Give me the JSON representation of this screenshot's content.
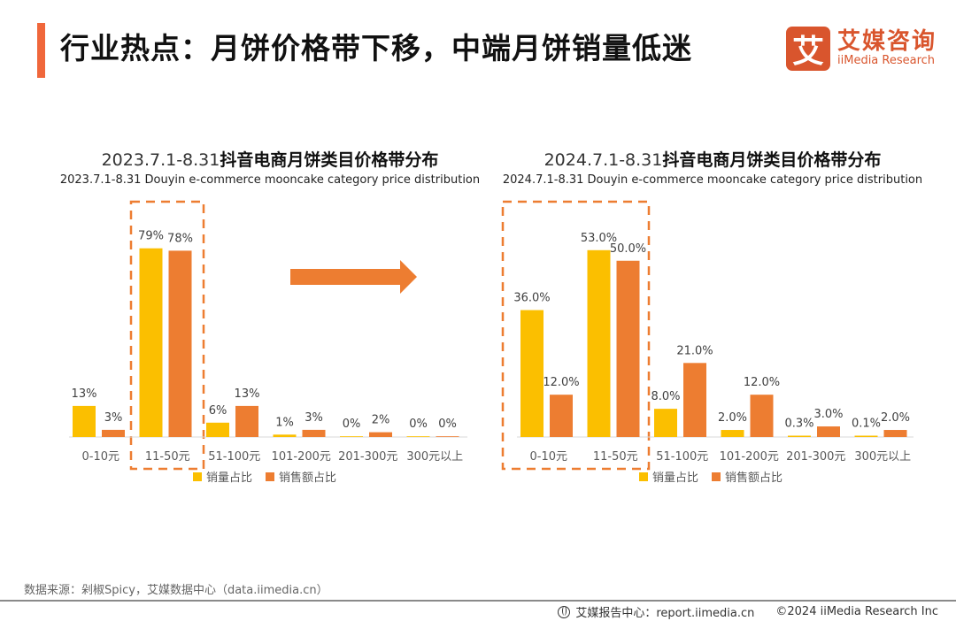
{
  "header": {
    "title": "行业热点：月饼价格带下移，中端月饼销量低迷",
    "accent_color": "#f0673b"
  },
  "logo": {
    "mark": "艾",
    "name_cn": "艾媒咨询",
    "name_en": "iiMedia Research",
    "color": "#d9552d"
  },
  "chart_data": [
    {
      "type": "bar",
      "title_date": "2023.7.1-8.31",
      "title_cn": "抖音电商月饼类目价格带分布",
      "subtitle": "2023.7.1-8.31 Douyin e-commerce mooncake category price distribution",
      "categories": [
        "0-10元",
        "11-50元",
        "51-100元",
        "101-200元",
        "201-300元",
        "300元以上"
      ],
      "series": [
        {
          "name": "销量占比",
          "color": "#fbbf00",
          "values": [
            13,
            79,
            6,
            1,
            0,
            0
          ],
          "labels": [
            "13%",
            "79%",
            "6%",
            "1%",
            "0%",
            "0%"
          ]
        },
        {
          "name": "销售额占比",
          "color": "#ed7d31",
          "values": [
            3,
            78,
            13,
            3,
            2,
            0
          ],
          "labels": [
            "3%",
            "78%",
            "13%",
            "3%",
            "2%",
            "0%"
          ]
        }
      ],
      "highlight_categories": [
        "11-50元"
      ],
      "ylim": [
        0,
        100
      ],
      "grid": false,
      "legend": "bottom"
    },
    {
      "type": "bar",
      "title_date": "2024.7.1-8.31",
      "title_cn": "抖音电商月饼类目价格带分布",
      "subtitle": "2024.7.1-8.31 Douyin e-commerce mooncake category price distribution",
      "categories": [
        "0-10元",
        "11-50元",
        "51-100元",
        "101-200元",
        "201-300元",
        "300元以上"
      ],
      "series": [
        {
          "name": "销量占比",
          "color": "#fbbf00",
          "values": [
            36.0,
            53.0,
            8.0,
            2.0,
            0.3,
            0.1
          ],
          "labels": [
            "36.0%",
            "53.0%",
            "8.0%",
            "2.0%",
            "0.3%",
            "0.1%"
          ]
        },
        {
          "name": "销售额占比",
          "color": "#ed7d31",
          "values": [
            12.0,
            50.0,
            21.0,
            12.0,
            3.0,
            2.0
          ],
          "labels": [
            "12.0%",
            "50.0%",
            "21.0%",
            "12.0%",
            "3.0%",
            "2.0%"
          ]
        }
      ],
      "highlight_categories": [
        "0-10元",
        "11-50元"
      ],
      "ylim": [
        0,
        66
      ],
      "grid": false,
      "legend": "bottom"
    }
  ],
  "arrow": {
    "color": "#ed7d31",
    "direction": "right"
  },
  "source": "数据来源：剁椒Spicy，艾媒数据中心（data.iimedia.cn）",
  "footer": {
    "report_center": "艾媒报告中心：report.iimedia.cn",
    "copyright": "©2024  iiMedia Research  Inc"
  }
}
